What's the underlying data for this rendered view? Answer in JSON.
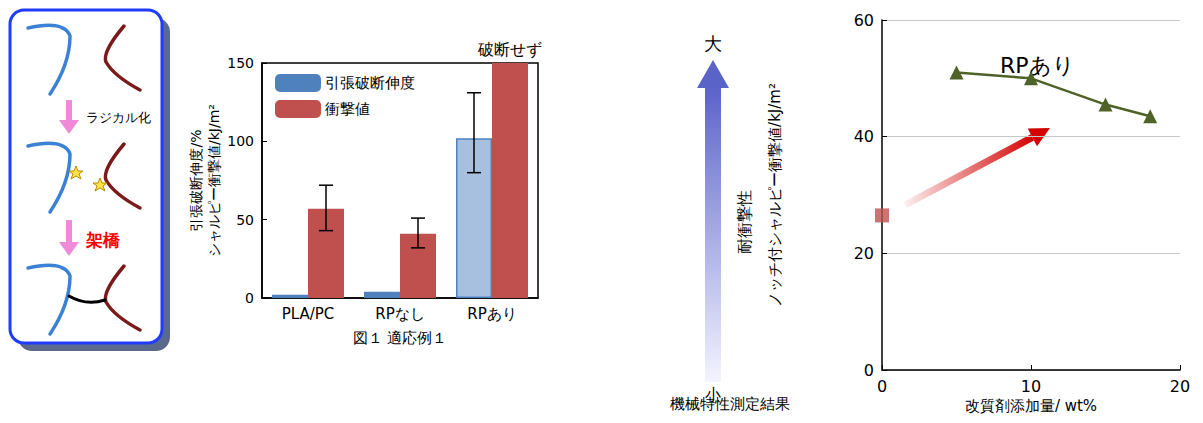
{
  "chart_data": [
    {
      "type": "bar",
      "caption": "図１ 適応例１",
      "ylabel": "引張破断伸度/%\nシャルピー衝撃値/kJ/m²",
      "categories": [
        "PLA/PC",
        "RPなし",
        "RPあり"
      ],
      "series": [
        {
          "name": "引張破断伸度",
          "color": "#4f81bd",
          "colors": [
            "#4f81bd",
            "#4f81bd",
            "#a7c0e0"
          ],
          "values": [
            2,
            4,
            102
          ],
          "error_range": [
            null,
            null,
            [
              80,
              131
            ]
          ]
        },
        {
          "name": "衝撃値",
          "color": "#c0504d",
          "values": [
            57,
            41,
            150
          ],
          "error_range": [
            [
              43,
              72
            ],
            [
              32,
              51
            ],
            null
          ],
          "point_notes": [
            null,
            null,
            "破断せず"
          ]
        }
      ],
      "ylim": [
        0,
        150
      ],
      "yticks": [
        0,
        50,
        100,
        150
      ],
      "grid": false,
      "legend": "upper left"
    },
    {
      "type": "line",
      "xlabel": "改質剤添加量/ wt%",
      "ylabel": "ノッチ付シャルピー衝撃値/kJ/m²",
      "series": [
        {
          "name": "RPあり",
          "color": "#4f6228",
          "marker": "triangle",
          "x": [
            5,
            10,
            15,
            18
          ],
          "values": [
            51,
            50,
            45.5,
            43.5
          ]
        },
        {
          "type": "scatter",
          "color": "#c0504d",
          "marker": "square",
          "x": [
            0
          ],
          "values": [
            26.5
          ]
        }
      ],
      "xlim": [
        0,
        20
      ],
      "xticks": [
        0,
        10,
        20
      ],
      "ylim": [
        0,
        60
      ],
      "yticks": [
        0,
        20,
        40,
        60
      ],
      "grid": true
    }
  ],
  "diagram": {
    "steps": [
      "ラジカル化",
      "架橋"
    ]
  },
  "scale_arrow": {
    "high": "大",
    "label": "耐衝撃性",
    "low": "小"
  },
  "caption": "機械特性測定結果"
}
